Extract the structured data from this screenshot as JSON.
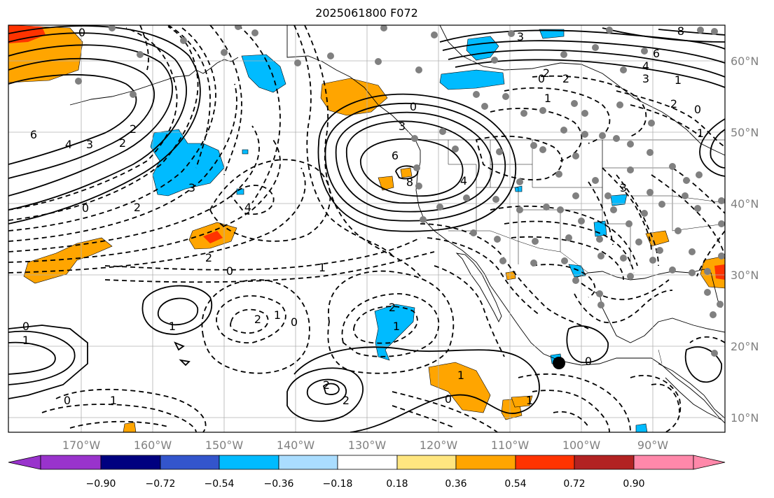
{
  "title": "2025061800 F072",
  "lat_labels": [
    "60°N",
    "50°N",
    "40°N",
    "30°N",
    "20°N",
    "10°N"
  ],
  "lon_labels": [
    "170°W",
    "160°W",
    "150°W",
    "140°W",
    "130°W",
    "120°W",
    "110°W",
    "100°W",
    "90°W"
  ],
  "colorbar": {
    "colors": [
      "#9933cc",
      "#000080",
      "#3355cc",
      "#00bbff",
      "#aaddff",
      "#ffffff",
      "#ffe680",
      "#ffa500",
      "#ff3300",
      "#b22222",
      "#ff88aa"
    ],
    "tick_labels": [
      "−0.90",
      "−0.72",
      "−0.54",
      "−0.36",
      "−0.18",
      "0.18",
      "0.36",
      "0.54",
      "0.72",
      "0.90"
    ]
  },
  "contour_labels": [
    {
      "text": "0"
    },
    {
      "text": "6"
    },
    {
      "text": "4"
    },
    {
      "text": "3"
    },
    {
      "text": "2"
    },
    {
      "text": "2"
    },
    {
      "text": "0"
    },
    {
      "text": "2"
    },
    {
      "text": "3"
    },
    {
      "text": "4"
    },
    {
      "text": "2"
    },
    {
      "text": "0"
    },
    {
      "text": "1"
    },
    {
      "text": "0"
    },
    {
      "text": "1"
    },
    {
      "text": "1"
    },
    {
      "text": "2"
    },
    {
      "text": "1"
    },
    {
      "text": "0"
    },
    {
      "text": "0"
    },
    {
      "text": "1"
    },
    {
      "text": "2"
    },
    {
      "text": "2"
    },
    {
      "text": "2"
    },
    {
      "text": "1"
    },
    {
      "text": "0"
    },
    {
      "text": "6"
    },
    {
      "text": "3"
    },
    {
      "text": "8"
    },
    {
      "text": "4"
    },
    {
      "text": "0"
    },
    {
      "text": "2"
    },
    {
      "text": "2"
    },
    {
      "text": "3"
    },
    {
      "text": "6"
    },
    {
      "text": "4"
    },
    {
      "text": "3"
    },
    {
      "text": "1"
    },
    {
      "text": "2"
    },
    {
      "text": "0"
    },
    {
      "text": "1"
    },
    {
      "text": "3"
    },
    {
      "text": "1"
    },
    {
      "text": "1"
    },
    {
      "text": "0"
    },
    {
      "text": "1"
    },
    {
      "text": "0"
    },
    {
      "text": "8"
    }
  ]
}
